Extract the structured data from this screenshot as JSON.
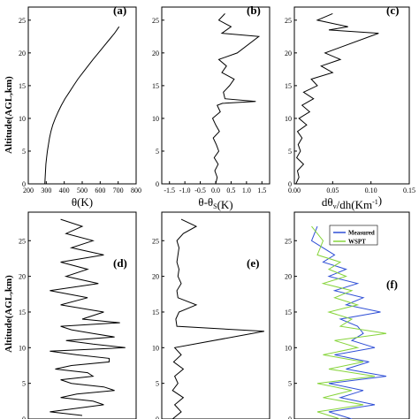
{
  "figure": {
    "ylabel": "Altitude(AGL,km)",
    "colors": {
      "line": "#000000",
      "measured": "#2f4fd6",
      "wspt": "#86d43a"
    }
  },
  "chart_data": [
    {
      "id": "a",
      "type": "line",
      "tag": "(a)",
      "xlabel": "θ(K)",
      "xlim": [
        200,
        800
      ],
      "ylim": [
        0,
        27
      ],
      "xticks": [
        "200",
        "300",
        "400",
        "500",
        "600",
        "700",
        "800"
      ],
      "yticks": [
        "0",
        "5",
        "10",
        "15",
        "20",
        "25"
      ],
      "series": [
        {
          "x": [
            292,
            294,
            296,
            298,
            302,
            306,
            312,
            318,
            326,
            336,
            350,
            366,
            384,
            404,
            428,
            452,
            476,
            504,
            532,
            560,
            590,
            620,
            650,
            680,
            705
          ],
          "y": [
            0,
            1,
            2,
            3,
            4,
            5,
            6,
            7,
            8,
            9,
            10,
            11,
            12,
            13,
            14,
            15,
            16,
            17,
            18,
            19,
            20,
            21,
            22,
            23,
            24
          ]
        }
      ]
    },
    {
      "id": "b",
      "type": "line",
      "tag": "(b)",
      "xlabel": "θ-θ",
      "xlabel_sub": "S",
      "xlabel_unit": "(K)",
      "xlim": [
        -1.75,
        1.75
      ],
      "ylim": [
        0,
        27
      ],
      "xticks": [
        "-1.5",
        "-1.0",
        "-0.5",
        "0.0",
        "0.5",
        "1.0",
        "1.5"
      ],
      "yticks": [
        "0",
        "5",
        "10",
        "15",
        "20",
        "25"
      ],
      "series": [
        {
          "x": [
            0.0,
            0.05,
            -0.03,
            0.08,
            -0.05,
            0.1,
            0.02,
            -0.08,
            0.12,
            0.0,
            -0.1,
            0.15,
            0.05,
            0.22,
            1.3,
            0.3,
            0.25,
            0.45,
            0.6,
            0.2,
            0.35,
            0.1,
            0.7,
            1.4,
            0.2,
            0.5,
            0.1,
            0.3
          ],
          "y": [
            0,
            1,
            2,
            3,
            4,
            5,
            6,
            7,
            8,
            9,
            10,
            11,
            12,
            12.3,
            12.6,
            13,
            14,
            15,
            16,
            17,
            18,
            19,
            20,
            22.5,
            23,
            24,
            25,
            26
          ]
        }
      ]
    },
    {
      "id": "c",
      "type": "line",
      "tag": "(c)",
      "xlabel": "dθ",
      "xlabel_sub": "v",
      "xlabel_unit": "/dh(Km",
      "xlabel_sup": "-1",
      "xlabel_close": ")",
      "xlim": [
        0,
        0.15
      ],
      "ylim": [
        0,
        27
      ],
      "xticks": [
        "0.00",
        "0.05",
        "0.10",
        "0.15"
      ],
      "yticks": [
        "0",
        "5",
        "10",
        "15",
        "20",
        "25"
      ],
      "series": [
        {
          "x": [
            0.002,
            0.006,
            0.004,
            0.012,
            0.003,
            0.008,
            0.005,
            0.01,
            0.004,
            0.016,
            0.006,
            0.02,
            0.01,
            0.025,
            0.012,
            0.03,
            0.022,
            0.05,
            0.035,
            0.06,
            0.04,
            0.11,
            0.045,
            0.07,
            0.03,
            0.05
          ],
          "y": [
            0,
            1,
            2,
            3,
            4,
            5,
            6,
            7,
            8,
            9,
            10,
            11,
            12,
            13,
            14,
            15,
            16,
            17,
            18,
            19,
            20,
            23,
            23.5,
            24,
            25,
            26
          ]
        }
      ]
    },
    {
      "id": "d",
      "type": "line",
      "tag": "(d)",
      "xlabel": "",
      "xlim": [
        0,
        1
      ],
      "ylim": [
        0,
        29
      ],
      "xticks": [],
      "yticks": [
        "0",
        "5",
        "10",
        "15",
        "20",
        "25"
      ],
      "series": [
        {
          "x": [
            0.5,
            0.2,
            0.7,
            0.3,
            0.8,
            0.4,
            0.6,
            0.25,
            0.75,
            0.45,
            0.9,
            0.35,
            0.6,
            0.3,
            0.85,
            0.5,
            0.7,
            0.3,
            0.55,
            0.2,
            0.65,
            0.35,
            0.55,
            0.3,
            0.7,
            0.4,
            0.6,
            0.35,
            0.5,
            0.3,
            0.8,
            0.4,
            0.6,
            0.2,
            0.75,
            0.4,
            0.55,
            0.3,
            0.7,
            0.45,
            0.6
          ],
          "y": [
            0.5,
            1,
            2,
            3,
            4,
            5,
            6,
            7,
            8,
            9,
            10,
            11,
            12,
            13,
            13.5,
            14,
            15,
            16,
            17,
            18,
            19,
            20,
            21,
            22,
            23,
            24,
            25,
            26,
            27,
            28,
            11.5,
            12.5,
            10.5,
            9.5,
            8.5,
            7.5,
            6.5,
            5.5,
            4.5,
            3.5,
            2.5
          ]
        }
      ]
    },
    {
      "id": "e",
      "type": "line",
      "tag": "(e)",
      "xlabel": "",
      "xlim": [
        0,
        1
      ],
      "ylim": [
        0,
        29
      ],
      "xticks": [],
      "yticks": [
        "0",
        "5",
        "10",
        "15",
        "20",
        "25"
      ],
      "series": [
        {
          "x": [
            0.1,
            0.18,
            0.12,
            0.2,
            0.1,
            0.15,
            0.12,
            0.2,
            0.11,
            0.18,
            0.12,
            0.95,
            0.14,
            0.13,
            0.16,
            0.32,
            0.15,
            0.14,
            0.18,
            0.15,
            0.16,
            0.14,
            0.15,
            0.16,
            0.14,
            0.2,
            0.32,
            0.18
          ],
          "y": [
            0,
            1,
            2,
            3,
            4,
            5,
            6,
            7,
            8,
            9,
            10,
            12.3,
            13,
            14,
            15,
            16,
            17,
            18,
            19,
            20,
            21,
            22,
            23,
            24,
            25,
            26,
            27,
            28
          ]
        }
      ]
    },
    {
      "id": "f",
      "type": "line",
      "tag": "(f)",
      "xlabel": "",
      "xlim": [
        0,
        1
      ],
      "ylim": [
        0,
        29
      ],
      "xticks": [],
      "yticks": [
        "0",
        "5",
        "10",
        "15",
        "20",
        "25"
      ],
      "legend": [
        "Measured",
        "WSPT"
      ],
      "series": [
        {
          "name": "Measured",
          "x": [
            0.5,
            0.3,
            0.7,
            0.4,
            0.6,
            0.3,
            0.8,
            0.45,
            0.65,
            0.35,
            0.7,
            0.5,
            0.6,
            0.55,
            0.4,
            0.75,
            0.45,
            0.6,
            0.35,
            0.55,
            0.3,
            0.45,
            0.25,
            0.35,
            0.15,
            0.2
          ],
          "y": [
            0,
            1,
            2,
            3,
            4,
            5,
            6,
            7,
            8,
            9,
            10,
            11,
            12,
            13,
            14,
            15,
            16,
            17,
            18,
            19,
            20,
            21,
            22,
            23,
            25,
            27
          ]
        },
        {
          "name": "WSPT",
          "x": [
            0.4,
            0.2,
            0.6,
            0.25,
            0.5,
            0.2,
            0.7,
            0.3,
            0.6,
            0.25,
            0.55,
            0.35,
            0.8,
            0.4,
            0.5,
            0.3,
            0.55,
            0.35,
            0.5,
            0.25,
            0.45,
            0.3,
            0.4,
            0.2,
            0.25,
            0.15
          ],
          "y": [
            0,
            1,
            2,
            3,
            4,
            5,
            6,
            7,
            8,
            9,
            10,
            11,
            12,
            13,
            14,
            15,
            16,
            17,
            18,
            19,
            20,
            21,
            22,
            23,
            25,
            27
          ]
        }
      ]
    }
  ]
}
